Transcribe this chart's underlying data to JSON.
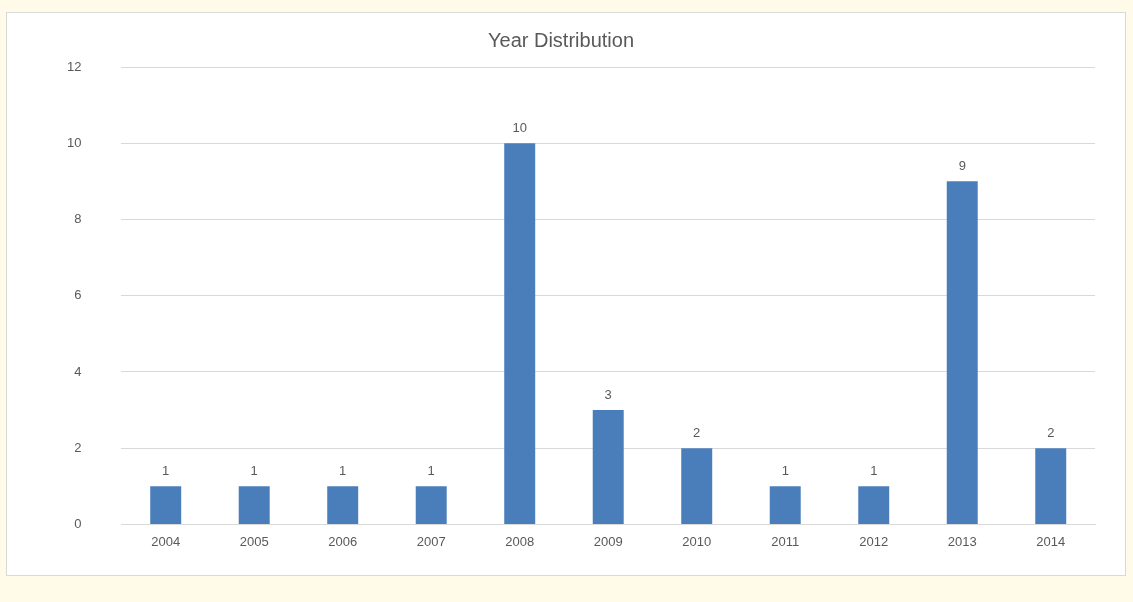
{
  "chart_data": {
    "type": "bar",
    "title": "Year Distribution",
    "categories": [
      "2004",
      "2005",
      "2006",
      "2007",
      "2008",
      "2009",
      "2010",
      "2011",
      "2012",
      "2013",
      "2014"
    ],
    "values": [
      1,
      1,
      1,
      1,
      10,
      3,
      2,
      1,
      1,
      9,
      2
    ],
    "color": "#4a7ebb",
    "ylim": [
      0,
      12
    ],
    "yticks": [
      0,
      2,
      4,
      6,
      8,
      10,
      12
    ],
    "grid": "y",
    "data_labels": true,
    "legend": false
  }
}
